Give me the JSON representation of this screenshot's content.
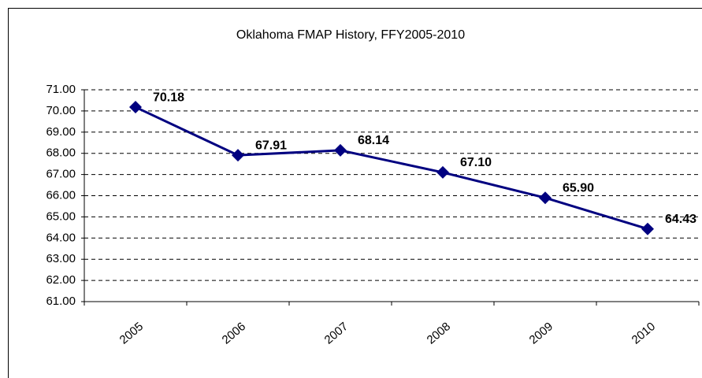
{
  "chart_data": {
    "type": "line",
    "title": "Oklahoma FMAP History, FFY2005-2010",
    "categories": [
      "2005",
      "2006",
      "2007",
      "2008",
      "2009",
      "2010"
    ],
    "series": [
      {
        "name": "FMAP",
        "color": "#000080",
        "values": [
          70.18,
          67.91,
          68.14,
          67.1,
          65.9,
          64.43
        ],
        "value_labels": [
          "70.18",
          "67.91",
          "68.14",
          "67.10",
          "65.90",
          "64.43"
        ]
      }
    ],
    "ylim": [
      61,
      71
    ],
    "yticks": [
      {
        "value": 61,
        "label": "61.00"
      },
      {
        "value": 62,
        "label": "62.00"
      },
      {
        "value": 63,
        "label": "63.00"
      },
      {
        "value": 64,
        "label": "64.00"
      },
      {
        "value": 65,
        "label": "65.00"
      },
      {
        "value": 66,
        "label": "66.00"
      },
      {
        "value": 67,
        "label": "67.00"
      },
      {
        "value": 68,
        "label": "68.00"
      },
      {
        "value": 69,
        "label": "69.00"
      },
      {
        "value": 70,
        "label": "70.00"
      },
      {
        "value": 71,
        "label": "71.00"
      }
    ],
    "grid": true
  }
}
